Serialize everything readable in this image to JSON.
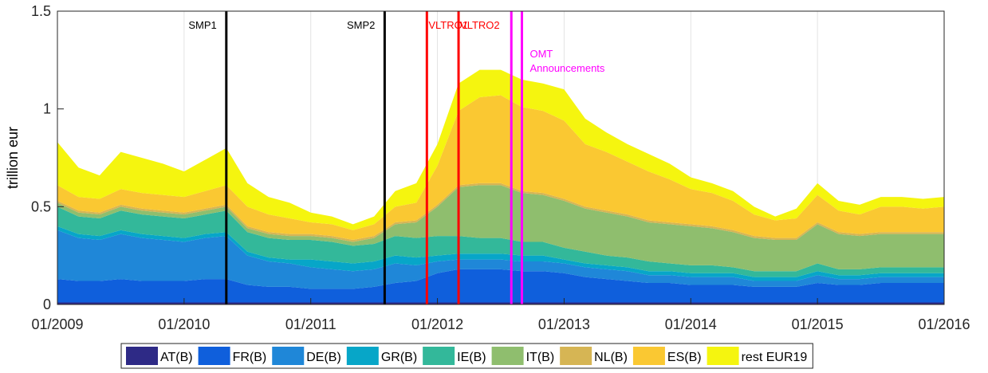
{
  "chart_data": {
    "type": "stacked-area",
    "y_label": "trillion eur",
    "x": [
      "01/2009",
      "03/2009",
      "05/2009",
      "07/2009",
      "09/2009",
      "11/2009",
      "01/2010",
      "03/2010",
      "05/2010",
      "07/2010",
      "09/2010",
      "11/2010",
      "01/2011",
      "03/2011",
      "05/2011",
      "07/2011",
      "09/2011",
      "11/2011",
      "01/2012",
      "03/2012",
      "05/2012",
      "07/2012",
      "09/2012",
      "11/2012",
      "01/2013",
      "03/2013",
      "05/2013",
      "07/2013",
      "09/2013",
      "11/2013",
      "01/2014",
      "03/2014",
      "05/2014",
      "07/2014",
      "09/2014",
      "11/2014",
      "01/2015",
      "03/2015",
      "05/2015",
      "07/2015",
      "09/2015",
      "11/2015",
      "01/2016"
    ],
    "xlim": [
      "01/2009",
      "01/2016"
    ],
    "xticks": [
      "01/2009",
      "01/2010",
      "01/2011",
      "01/2012",
      "01/2013",
      "01/2014",
      "01/2015",
      "01/2016"
    ],
    "ylim": [
      0,
      1.5
    ],
    "yticks": [
      0,
      0.5,
      1,
      1.5
    ],
    "grid": "x",
    "legend": "bottom",
    "series": [
      {
        "name": "AT(B)",
        "color": "#2e2a86",
        "values": [
          0.01,
          0.01,
          0.01,
          0.01,
          0.01,
          0.01,
          0.01,
          0.01,
          0.01,
          0.01,
          0.01,
          0.01,
          0.01,
          0.01,
          0.01,
          0.01,
          0.01,
          0.01,
          0.01,
          0.01,
          0.01,
          0.01,
          0.01,
          0.01,
          0.01,
          0.01,
          0.01,
          0.01,
          0.01,
          0.01,
          0.01,
          0.01,
          0.01,
          0.01,
          0.01,
          0.01,
          0.01,
          0.01,
          0.01,
          0.01,
          0.01,
          0.01,
          0.01
        ]
      },
      {
        "name": "FR(B)",
        "color": "#0f5fdc",
        "values": [
          0.12,
          0.11,
          0.11,
          0.12,
          0.11,
          0.11,
          0.11,
          0.12,
          0.12,
          0.09,
          0.08,
          0.08,
          0.07,
          0.07,
          0.07,
          0.08,
          0.1,
          0.11,
          0.15,
          0.17,
          0.17,
          0.17,
          0.16,
          0.16,
          0.15,
          0.13,
          0.12,
          0.11,
          0.1,
          0.1,
          0.09,
          0.09,
          0.09,
          0.08,
          0.08,
          0.08,
          0.1,
          0.09,
          0.09,
          0.1,
          0.1,
          0.1,
          0.1
        ]
      },
      {
        "name": "DE(B)",
        "color": "#1f87d8",
        "values": [
          0.25,
          0.22,
          0.21,
          0.23,
          0.22,
          0.21,
          0.2,
          0.21,
          0.22,
          0.15,
          0.13,
          0.12,
          0.11,
          0.1,
          0.09,
          0.09,
          0.1,
          0.08,
          0.06,
          0.05,
          0.05,
          0.05,
          0.05,
          0.05,
          0.05,
          0.05,
          0.05,
          0.05,
          0.04,
          0.04,
          0.04,
          0.04,
          0.04,
          0.03,
          0.03,
          0.03,
          0.04,
          0.03,
          0.03,
          0.03,
          0.03,
          0.03,
          0.03
        ]
      },
      {
        "name": "GR(B)",
        "color": "#07a6c8",
        "values": [
          0.02,
          0.02,
          0.02,
          0.02,
          0.02,
          0.02,
          0.02,
          0.02,
          0.02,
          0.02,
          0.02,
          0.02,
          0.04,
          0.04,
          0.04,
          0.04,
          0.04,
          0.04,
          0.03,
          0.03,
          0.03,
          0.03,
          0.03,
          0.03,
          0.02,
          0.02,
          0.02,
          0.02,
          0.02,
          0.02,
          0.02,
          0.02,
          0.02,
          0.02,
          0.02,
          0.02,
          0.02,
          0.02,
          0.02,
          0.02,
          0.02,
          0.02,
          0.02
        ]
      },
      {
        "name": "IE(B)",
        "color": "#33b89a",
        "values": [
          0.1,
          0.09,
          0.09,
          0.1,
          0.1,
          0.1,
          0.1,
          0.1,
          0.11,
          0.1,
          0.1,
          0.1,
          0.1,
          0.1,
          0.09,
          0.09,
          0.1,
          0.1,
          0.1,
          0.09,
          0.08,
          0.08,
          0.07,
          0.07,
          0.06,
          0.06,
          0.05,
          0.05,
          0.05,
          0.04,
          0.04,
          0.04,
          0.03,
          0.03,
          0.03,
          0.03,
          0.04,
          0.03,
          0.03,
          0.03,
          0.03,
          0.03,
          0.03
        ]
      },
      {
        "name": "IT(B)",
        "color": "#8fbe6e",
        "values": [
          0.02,
          0.02,
          0.02,
          0.02,
          0.02,
          0.02,
          0.02,
          0.02,
          0.02,
          0.02,
          0.02,
          0.02,
          0.02,
          0.02,
          0.02,
          0.03,
          0.06,
          0.08,
          0.15,
          0.25,
          0.27,
          0.27,
          0.25,
          0.24,
          0.24,
          0.22,
          0.22,
          0.21,
          0.2,
          0.2,
          0.2,
          0.19,
          0.18,
          0.17,
          0.16,
          0.16,
          0.2,
          0.18,
          0.17,
          0.17,
          0.17,
          0.17,
          0.17
        ]
      },
      {
        "name": "NL(B)",
        "color": "#d6b554",
        "values": [
          0.01,
          0.01,
          0.01,
          0.01,
          0.01,
          0.01,
          0.01,
          0.01,
          0.01,
          0.01,
          0.01,
          0.01,
          0.01,
          0.01,
          0.01,
          0.01,
          0.01,
          0.01,
          0.01,
          0.01,
          0.01,
          0.01,
          0.01,
          0.01,
          0.01,
          0.01,
          0.01,
          0.01,
          0.01,
          0.01,
          0.01,
          0.01,
          0.01,
          0.01,
          0.01,
          0.01,
          0.01,
          0.01,
          0.01,
          0.01,
          0.01,
          0.01,
          0.01
        ]
      },
      {
        "name": "ES(B)",
        "color": "#fac832",
        "values": [
          0.08,
          0.07,
          0.07,
          0.08,
          0.08,
          0.08,
          0.08,
          0.09,
          0.1,
          0.1,
          0.09,
          0.08,
          0.06,
          0.06,
          0.05,
          0.06,
          0.08,
          0.09,
          0.2,
          0.38,
          0.44,
          0.45,
          0.43,
          0.42,
          0.4,
          0.32,
          0.3,
          0.27,
          0.25,
          0.22,
          0.18,
          0.17,
          0.15,
          0.11,
          0.09,
          0.1,
          0.14,
          0.11,
          0.1,
          0.13,
          0.13,
          0.12,
          0.13
        ]
      },
      {
        "name": "rest EUR19",
        "color": "#f5f50f",
        "values": [
          0.22,
          0.15,
          0.12,
          0.19,
          0.18,
          0.16,
          0.13,
          0.16,
          0.19,
          0.12,
          0.09,
          0.08,
          0.05,
          0.04,
          0.03,
          0.04,
          0.08,
          0.1,
          0.11,
          0.14,
          0.14,
          0.13,
          0.14,
          0.14,
          0.16,
          0.13,
          0.1,
          0.09,
          0.09,
          0.08,
          0.06,
          0.05,
          0.05,
          0.04,
          0.02,
          0.05,
          0.06,
          0.05,
          0.05,
          0.05,
          0.05,
          0.05,
          0.05
        ]
      }
    ],
    "events": [
      {
        "x": "05/2010",
        "label": "SMP1",
        "color": "#000000"
      },
      {
        "x": "08/2011",
        "label": "SMP2",
        "color": "#000000"
      },
      {
        "x": "12/2011",
        "label": "VLTRO1",
        "color": "#ff0000"
      },
      {
        "x": "03/2012",
        "label": "VLTRO2",
        "color": "#ff0000"
      },
      {
        "x": "08/2012",
        "color": "#ff00ff"
      },
      {
        "x": "09/2012",
        "label": [
          "OMT",
          "Announcements"
        ],
        "color": "#ff00ff"
      }
    ]
  }
}
